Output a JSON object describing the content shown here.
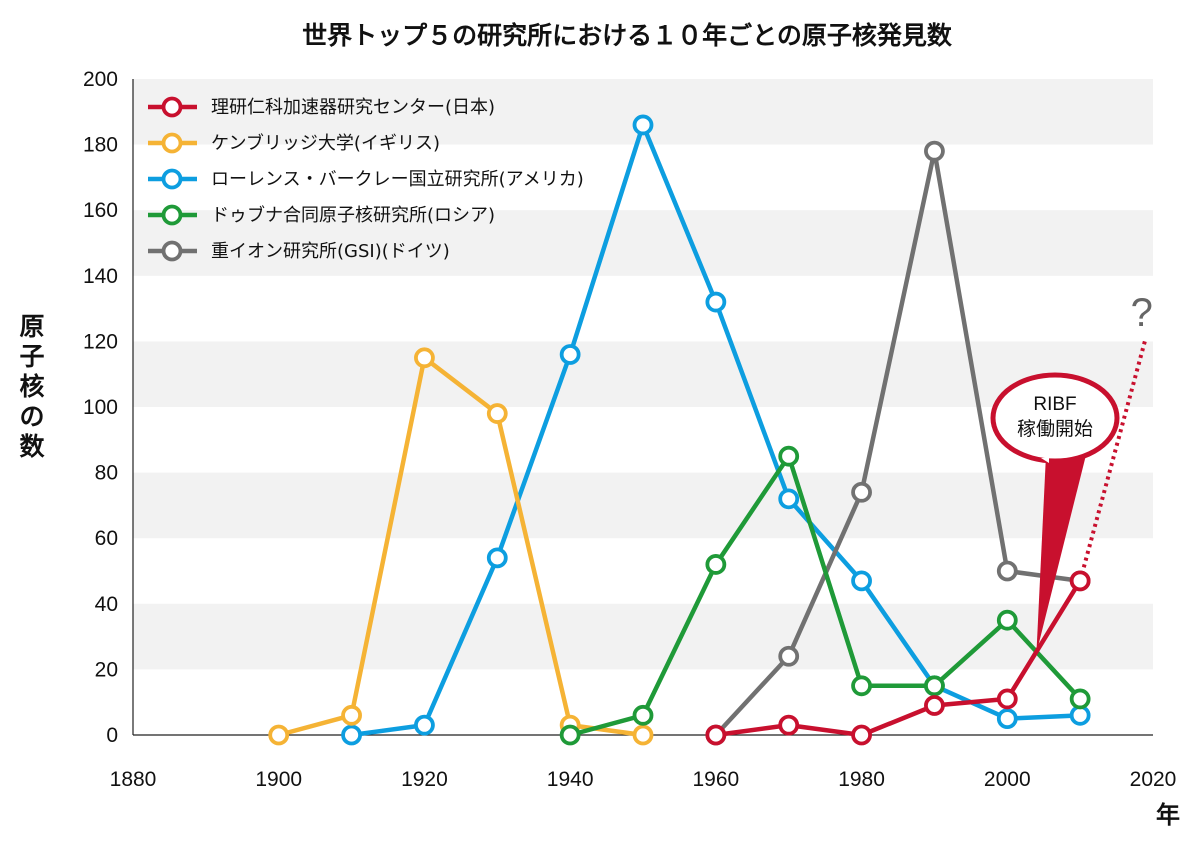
{
  "chart_data": {
    "type": "line",
    "title": "世界トップ５の研究所における１０年ごとの原子核発見数",
    "ylabel": "原子核の数",
    "xlabel": "年",
    "xlim": [
      1880,
      2020
    ],
    "ylim": [
      0,
      200
    ],
    "xticks": [
      1880,
      1900,
      1920,
      1940,
      1960,
      1980,
      2000,
      2020
    ],
    "yticks": [
      0,
      20,
      40,
      60,
      80,
      100,
      120,
      140,
      160,
      180,
      200
    ],
    "grid": "horizontal alternating bands",
    "legend_position": "top-left",
    "series": [
      {
        "name": "理研仁科加速器研究センター(日本)",
        "color": "#c8102e",
        "x": [
          1960,
          1970,
          1980,
          1990,
          2000,
          2010
        ],
        "y": [
          0,
          3,
          0,
          9,
          11,
          47
        ]
      },
      {
        "name": "ケンブリッジ大学(イギリス)",
        "color": "#f5b335",
        "x": [
          1900,
          1910,
          1920,
          1930,
          1940,
          1950
        ],
        "y": [
          0,
          6,
          115,
          98,
          3,
          0
        ]
      },
      {
        "name": "ローレンス・バークレー国立研究所(アメリカ)",
        "color": "#0d9ee0",
        "x": [
          1910,
          1920,
          1930,
          1940,
          1950,
          1960,
          1970,
          1980,
          1990,
          2000,
          2010
        ],
        "y": [
          0,
          3,
          54,
          116,
          186,
          132,
          72,
          47,
          15,
          5,
          6
        ]
      },
      {
        "name": "ドゥブナ合同原子核研究所(ロシア)",
        "color": "#1f9a38",
        "x": [
          1940,
          1950,
          1960,
          1970,
          1980,
          1990,
          2000,
          2010
        ],
        "y": [
          0,
          6,
          52,
          85,
          15,
          15,
          35,
          11
        ]
      },
      {
        "name": "重イオン研究所(GSI)(ドイツ)",
        "color": "#717171",
        "x": [
          1960,
          1970,
          1980,
          1990,
          2000,
          2010
        ],
        "y": [
          0,
          24,
          74,
          178,
          50,
          47
        ]
      }
    ],
    "projection": {
      "color": "#c8102e",
      "style": "dotted",
      "x": [
        2010,
        2019
      ],
      "y": [
        47,
        121
      ],
      "label": "?"
    },
    "annotation": {
      "lines": [
        "RIBF",
        "稼働開始"
      ],
      "color": "#c8102e",
      "points_to_x": 2004,
      "points_to_y": 25
    }
  }
}
